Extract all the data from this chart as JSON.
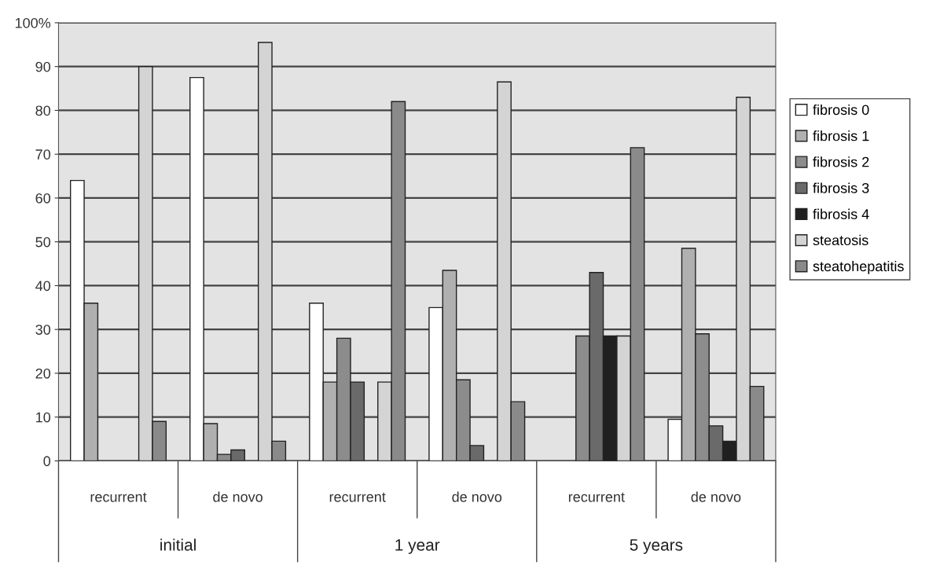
{
  "chart_data": {
    "type": "bar",
    "categories": [
      "recurrent",
      "de novo",
      "recurrent",
      "de novo",
      "recurrent",
      "de novo"
    ],
    "annotations": [
      "initial",
      "1 year",
      "5 years"
    ],
    "series": [
      {
        "name": "fibrosis 0",
        "color": "#ffffff",
        "values": [
          64,
          87.5,
          36,
          35,
          null,
          9.5
        ]
      },
      {
        "name": "fibrosis 1",
        "color": "#b0b0b0",
        "values": [
          36,
          8.5,
          18,
          43.5,
          null,
          48.5
        ]
      },
      {
        "name": "fibrosis 2",
        "color": "#8c8c8c",
        "values": [
          null,
          1.5,
          28,
          18.5,
          28.5,
          29
        ]
      },
      {
        "name": "fibrosis 3",
        "color": "#6a6a6a",
        "values": [
          null,
          2.5,
          18,
          3.5,
          43,
          8
        ]
      },
      {
        "name": "fibrosis 4",
        "color": "#202020",
        "values": [
          null,
          null,
          null,
          null,
          28.5,
          4.5
        ]
      },
      {
        "name": "steatosis",
        "color": "#d4d4d4",
        "values": [
          90,
          95.5,
          18,
          86.5,
          28.5,
          83
        ]
      },
      {
        "name": "steatohepatitis",
        "color": "#8a8a8a",
        "values": [
          9,
          4.5,
          82,
          13.5,
          71.5,
          17
        ]
      }
    ],
    "ylim": [
      0,
      100
    ],
    "yticks": [
      0,
      10,
      20,
      30,
      40,
      50,
      60,
      70,
      80,
      90,
      {
        "value": 100,
        "label": "100%"
      }
    ],
    "grid": "y",
    "legend": "right"
  }
}
